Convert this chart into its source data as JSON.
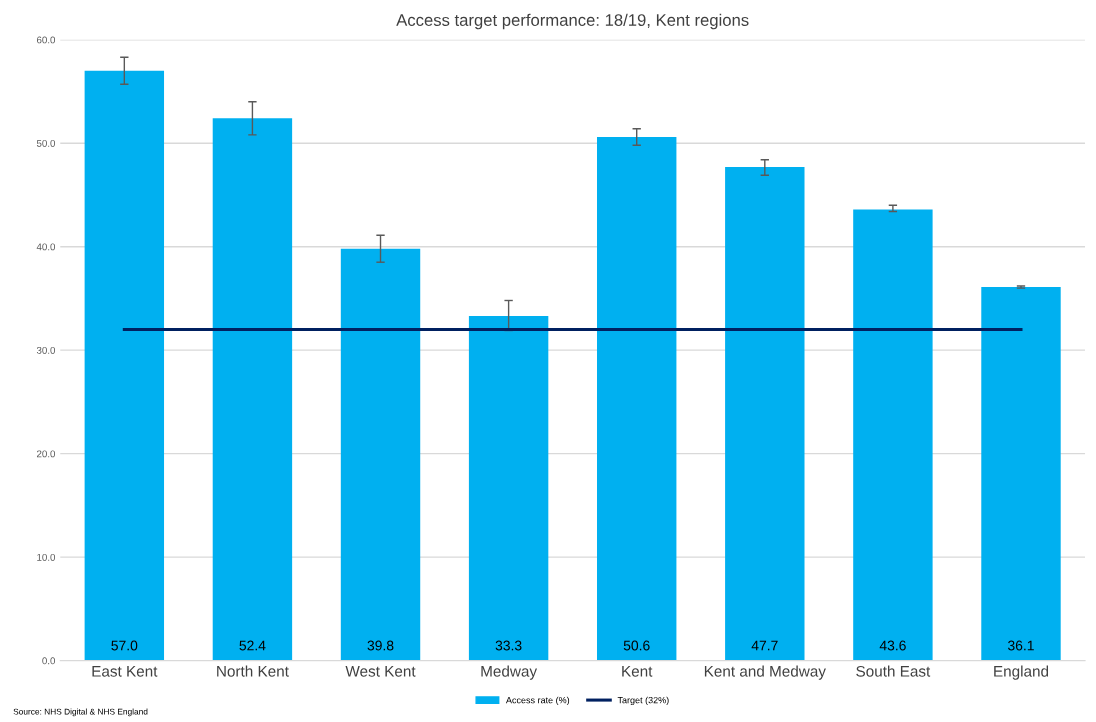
{
  "chart_data": {
    "type": "bar",
    "title": "Access target performance: 18/19, Kent regions",
    "categories": [
      "East Kent",
      "North Kent",
      "West Kent",
      "Medway",
      "Kent",
      "Kent and Medway",
      "South East",
      "England"
    ],
    "series": [
      {
        "name": "Access rate (%)",
        "color": "#00b0f0",
        "values": [
          57.0,
          52.4,
          39.8,
          33.3,
          50.6,
          47.7,
          43.6,
          36.1
        ],
        "value_labels": [
          "57.0",
          "52.4",
          "39.8",
          "33.3",
          "50.6",
          "47.7",
          "43.6",
          "36.1"
        ],
        "errors": [
          [
            55.7,
            58.3
          ],
          [
            50.8,
            54.0
          ],
          [
            38.5,
            41.1
          ],
          [
            31.9,
            34.8
          ],
          [
            49.8,
            51.4
          ],
          [
            46.9,
            48.4
          ],
          [
            43.4,
            44.0
          ],
          [
            36.0,
            36.2
          ]
        ]
      },
      {
        "name": "Target (32%)",
        "type": "line",
        "color": "#002060",
        "values": [
          32,
          32,
          32,
          32,
          32,
          32,
          32,
          32
        ]
      }
    ],
    "ylim": [
      0,
      60
    ],
    "yticks": [
      {
        "value": 0,
        "label": "0.0"
      },
      {
        "value": 10,
        "label": "10.0"
      },
      {
        "value": 20,
        "label": "20.0"
      },
      {
        "value": 30,
        "label": "30.0"
      },
      {
        "value": 40,
        "label": "40.0"
      },
      {
        "value": 50,
        "label": "50.0"
      },
      {
        "value": 60,
        "label": "60.0"
      }
    ],
    "grid": "y",
    "legend": "bottom",
    "annotations": [
      "Source: NHS Digital & NHS England"
    ]
  }
}
